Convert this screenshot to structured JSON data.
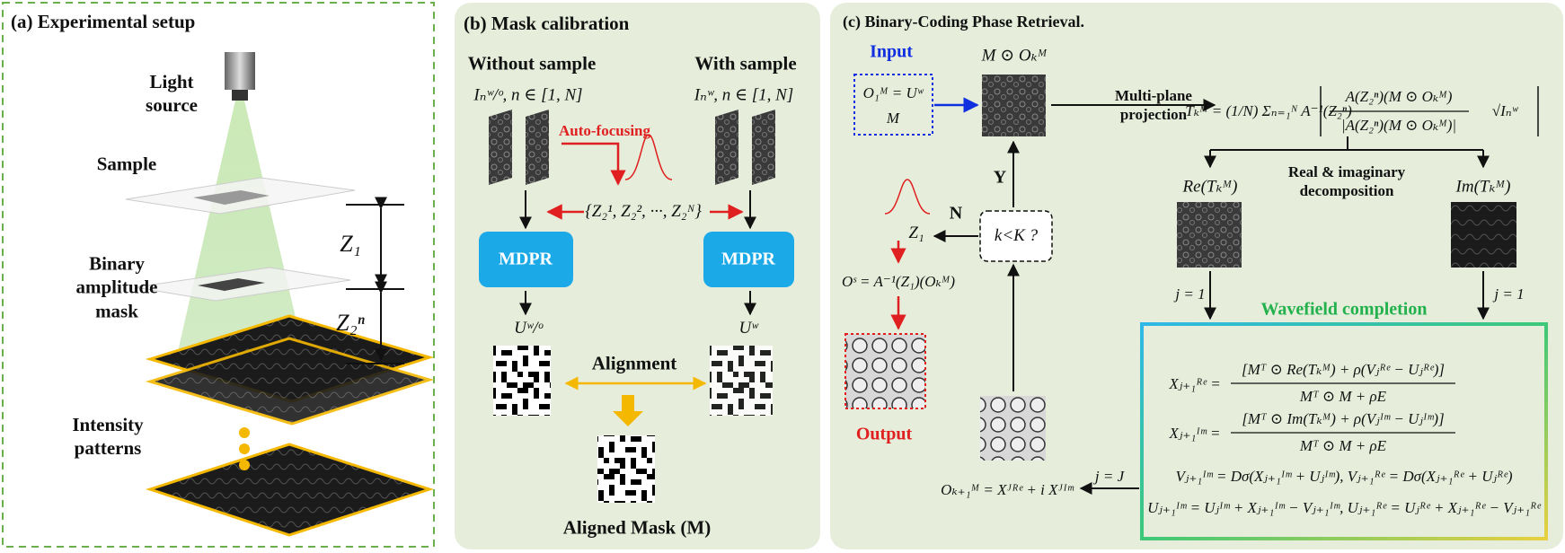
{
  "panel_a": {
    "title": "(a) Experimental setup",
    "light_source": "Light source",
    "sample": "Sample",
    "mask": "Binary amplitude mask",
    "patterns": "Intensity patterns",
    "z1": "Z₁",
    "z2": "Z₂ⁿ"
  },
  "panel_b": {
    "title": "(b) Mask calibration",
    "without": "Without sample",
    "with": "With sample",
    "i_without": "Iₙʷ/ᵒ, n ∈ [1, N]",
    "i_with": "Iₙʷ, n ∈ [1, N]",
    "autofocus": "Auto-focusing",
    "distances": "{Z₂¹, Z₂², ···, Z₂ᴺ}",
    "mdpr_left": "MDPR",
    "mdpr_right": "MDPR",
    "u_without": "Uʷ/ᵒ",
    "u_with": "Uʷ",
    "alignment": "Alignment",
    "aligned_mask": "Aligned Mask (M)"
  },
  "panel_c": {
    "title": "(c) Binary-Coding Phase Retrieval.",
    "input": "Input",
    "init1": "O₁ᴹ = Uʷ",
    "init2": "M",
    "masked": "M ⊙ Oₖᴹ",
    "projection": "Multi-plane projection",
    "t_lhs": "Tₖᴹ = (1/N) Σₙ₌₁ᴺ A⁻¹(Z₂ⁿ)",
    "t_num": "A(Z₂ⁿ)(M ⊙ Oₖᴹ)",
    "t_den": "|A(Z₂ⁿ)(M ⊙ Oₖᴹ)|",
    "t_sqrt": "√Iₙʷ",
    "re": "Re(Tₖᴹ)",
    "im": "Im(Tₖᴹ)",
    "decomposition": "Real & imaginary decomposition",
    "j1_left": "j = 1",
    "j1_right": "j = 1",
    "wavefield": "Wavefield completion",
    "x_re_lhs": "Xⱼ₊₁ᴿᵉ =",
    "x_re_num": "[Mᵀ ⊙ Re(Tₖᴹ) + ρ(Vⱼᴿᵉ − Uⱼᴿᵉ)]",
    "x_re_den": "Mᵀ ⊙ M + ρE",
    "x_im_lhs": "Xⱼ₊₁ᴵᵐ =",
    "x_im_num": "[Mᵀ ⊙ Im(Tₖᴹ) + ρ(Vⱼᴵᵐ − Uⱼᴵᵐ)]",
    "x_im_den": "Mᵀ ⊙ M + ρE",
    "v_line": "Vⱼ₊₁ᴵᵐ = Dσ(Xⱼ₊₁ᴵᵐ + Uⱼᴵᵐ),   Vⱼ₊₁ᴿᵉ = Dσ(Xⱼ₊₁ᴿᵉ + Uⱼᴿᵉ)",
    "u_line": "Uⱼ₊₁ᴵᵐ = Uⱼᴵᵐ + Xⱼ₊₁ᴵᵐ − Vⱼ₊₁ᴵᵐ,  Uⱼ₊₁ᴿᵉ = Uⱼᴿᵉ + Xⱼ₊₁ᴿᵉ − Vⱼ₊₁ᴿᵉ",
    "j_J": "j = J",
    "update": "Oₖ₊₁ᴹ = Xᴶᴿᵉ + i Xᴶᴵᵐ",
    "check": "k<K ?",
    "yes": "Y",
    "no": "N",
    "z1": "Z₁",
    "os": "Oˢ = A⁻¹(Z₁)(Oₖᴹ)",
    "output": "Output"
  }
}
